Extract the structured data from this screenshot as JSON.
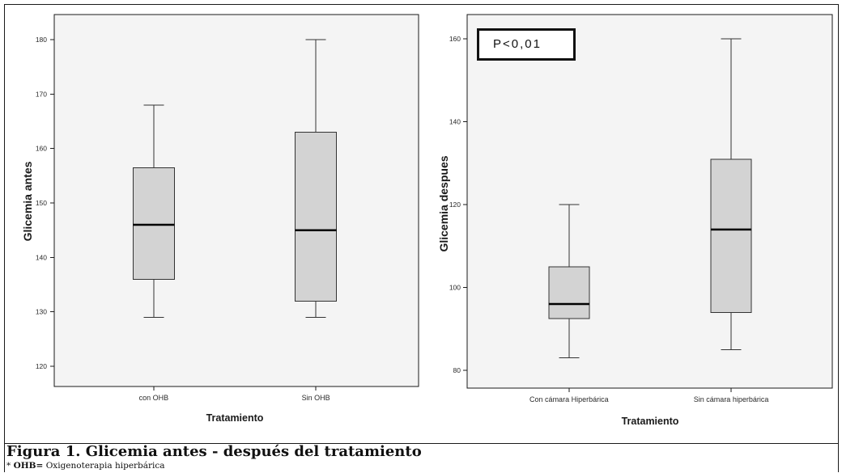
{
  "caption": {
    "title": "Figura 1. Glicemia antes - después del tratamiento",
    "footnote_marker": "*",
    "footnote_abbr": "OHB=",
    "footnote_text": "Oxigenoterapia hiperbárica"
  },
  "colors": {
    "plot_background": "#f4f4f4",
    "frame": "#1a1a1a",
    "box_fill": "#d3d3d3",
    "box_stroke": "#333333",
    "median_line": "#000000"
  },
  "chart_data": [
    {
      "type": "box",
      "xlabel": "Tratamiento",
      "ylabel": "Glicemia antes",
      "categories": [
        "con OHB",
        "Sin OHB"
      ],
      "boxes": [
        {
          "min": 129,
          "q1": 136,
          "median": 146,
          "q3": 156.5,
          "max": 168
        },
        {
          "min": 129,
          "q1": 132,
          "median": 145,
          "q3": 163,
          "max": 180
        }
      ],
      "yticks": [
        120,
        130,
        140,
        150,
        160,
        170,
        180
      ],
      "ylim": [
        116.3,
        184.6
      ],
      "grid": false
    },
    {
      "type": "box",
      "xlabel": "Tratamiento",
      "ylabel": "Glicemia despues",
      "categories": [
        "Con cámara Hiperbárica",
        "Sin cámara hiperbárica"
      ],
      "boxes": [
        {
          "min": 83,
          "q1": 92.5,
          "median": 96,
          "q3": 105,
          "max": 120
        },
        {
          "min": 85,
          "q1": 94,
          "median": 114,
          "q3": 131,
          "max": 160
        }
      ],
      "yticks": [
        80,
        100,
        120,
        140,
        160
      ],
      "ylim": [
        75.7,
        165.9
      ],
      "annotation": "P<0,01",
      "grid": false
    }
  ]
}
